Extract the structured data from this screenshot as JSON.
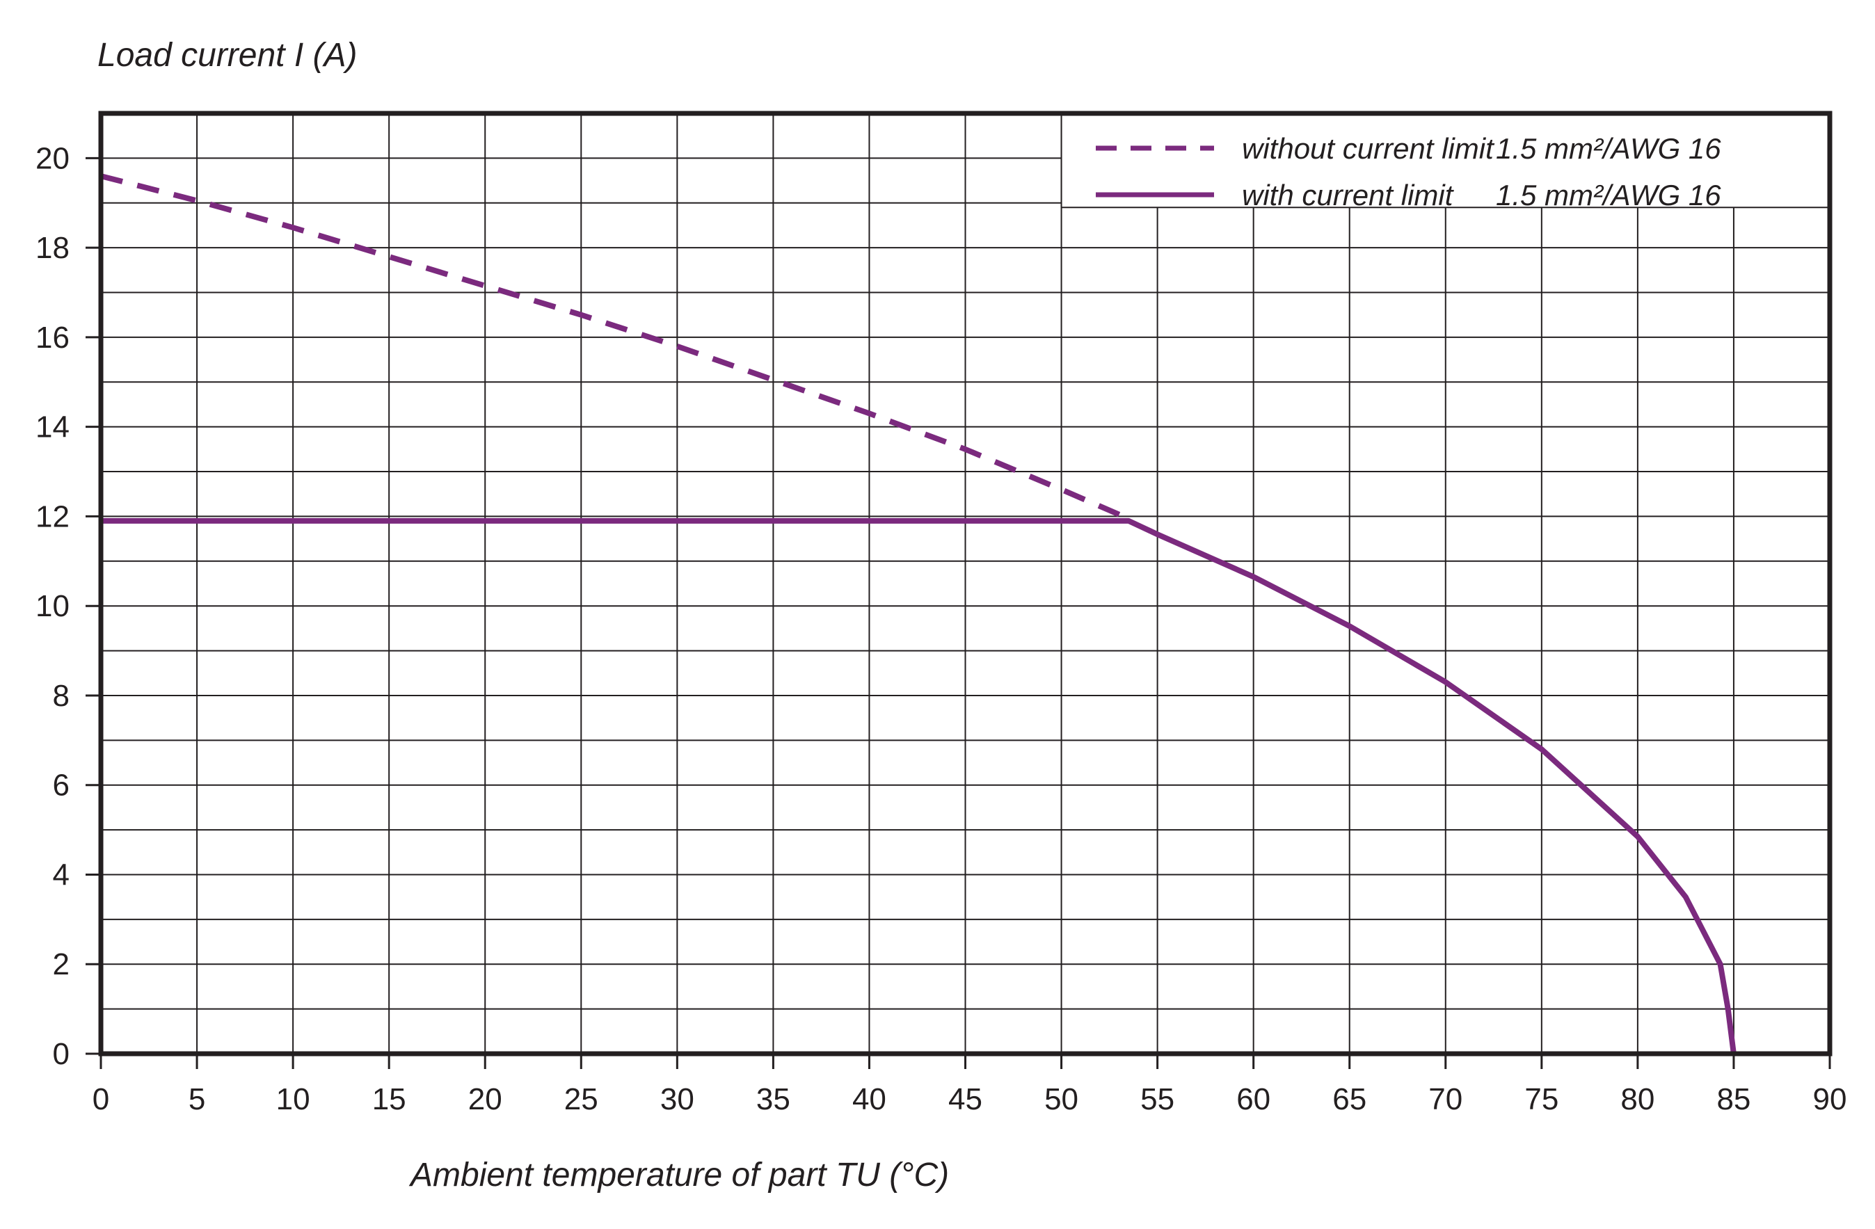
{
  "chart_data": {
    "type": "line",
    "ylabel": "Load current I (A)",
    "xlabel": "Ambient temperature of part TU (°C)",
    "xlim": [
      0,
      90
    ],
    "ylim": [
      0,
      21
    ],
    "x_ticks": [
      0,
      5,
      10,
      15,
      20,
      25,
      30,
      35,
      40,
      45,
      50,
      55,
      60,
      65,
      70,
      75,
      80,
      85,
      90
    ],
    "y_ticks": [
      0,
      2,
      4,
      6,
      8,
      10,
      12,
      14,
      16,
      18,
      20
    ],
    "grid": true,
    "legend_position": "top-right",
    "series": [
      {
        "name": "without current limit",
        "size_label": "1.5 mm²/AWG 16",
        "style": "dashed",
        "color": "#7b2a7e",
        "points": [
          [
            0,
            19.6
          ],
          [
            5,
            19.05
          ],
          [
            10,
            18.45
          ],
          [
            15,
            17.8
          ],
          [
            20,
            17.15
          ],
          [
            25,
            16.5
          ],
          [
            30,
            15.8
          ],
          [
            35,
            15.05
          ],
          [
            40,
            14.3
          ],
          [
            45,
            13.5
          ],
          [
            50,
            12.6
          ],
          [
            53.5,
            11.95
          ]
        ]
      },
      {
        "name": "with current limit",
        "size_label": "1.5 mm²/AWG 16",
        "style": "solid",
        "color": "#7b2a7e",
        "points": [
          [
            0,
            11.9
          ],
          [
            53.5,
            11.9
          ],
          [
            55,
            11.6
          ],
          [
            60,
            10.65
          ],
          [
            65,
            9.55
          ],
          [
            70,
            8.3
          ],
          [
            75,
            6.8
          ],
          [
            80,
            4.85
          ],
          [
            82.5,
            3.5
          ],
          [
            84.3,
            2.0
          ],
          [
            84.7,
            1.0
          ],
          [
            85,
            0
          ]
        ]
      }
    ]
  }
}
